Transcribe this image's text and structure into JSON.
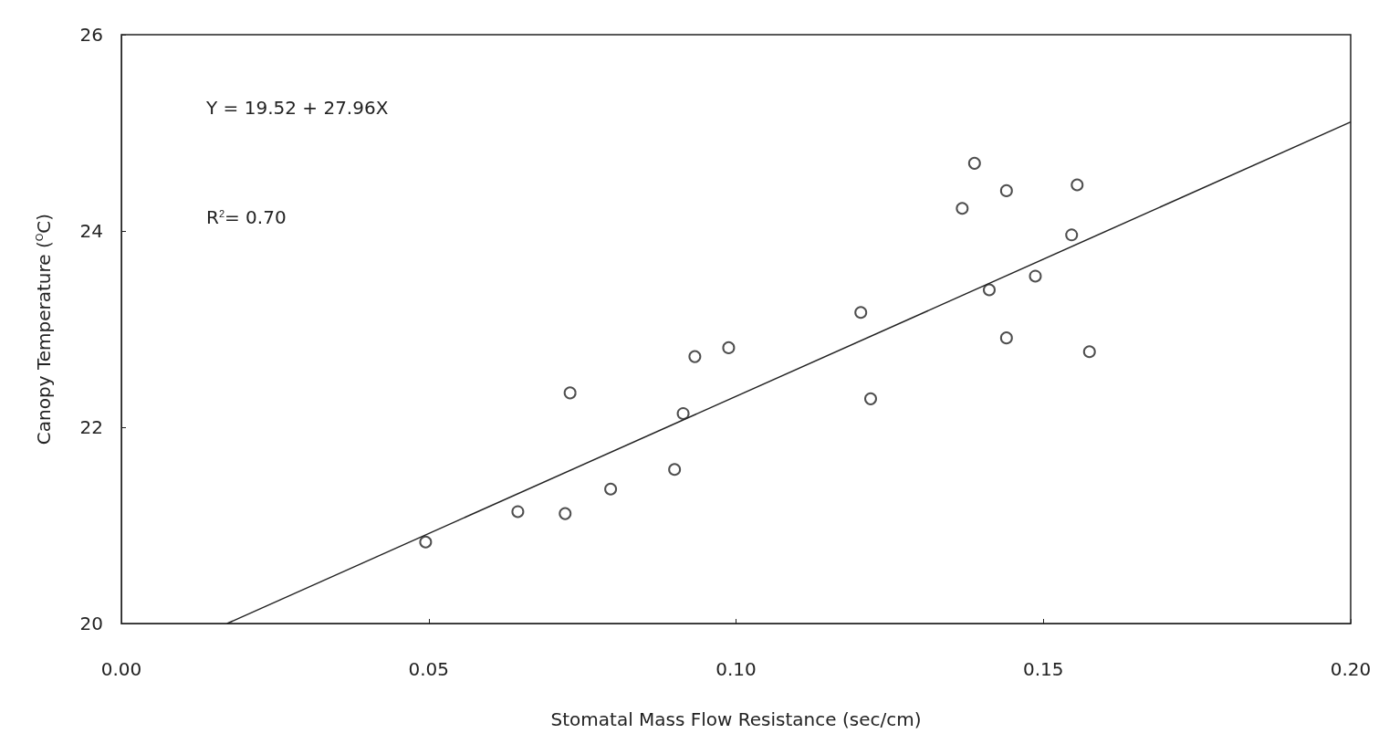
{
  "chart_data": {
    "type": "scatter",
    "xlabel": "Stomatal Mass Flow Resistance (sec/cm)",
    "ylabel": "Canopy Temperature ($^{O}$C)",
    "xlim": [
      0,
      0.2
    ],
    "ylim": [
      20,
      26
    ],
    "xticks": [
      {
        "value": 0,
        "label": "0.00"
      },
      {
        "value": 0.05,
        "label": "0.05"
      },
      {
        "value": 0.1,
        "label": "0.10"
      },
      {
        "value": 0.15,
        "label": "0.15"
      },
      {
        "value": 0.2,
        "label": "0.20"
      }
    ],
    "yticks": [
      20,
      22,
      24,
      26
    ],
    "grid": false,
    "annotations": [
      "Y = 19.52 + 27.96X",
      "R$^{2}$= 0.70"
    ],
    "series": [
      {
        "marker": "circle",
        "color": "#222222",
        "x": [
          0.0495,
          0.0645,
          0.0722,
          0.073,
          0.0796,
          0.09,
          0.0914,
          0.0933,
          0.0988,
          0.1203,
          0.1219,
          0.1368,
          0.1388,
          0.1412,
          0.144,
          0.144,
          0.1487,
          0.1546,
          0.1555,
          0.1575
        ],
        "values": [
          20.83,
          21.14,
          21.12,
          22.35,
          21.37,
          21.57,
          22.14,
          22.72,
          22.81,
          23.17,
          22.29,
          24.23,
          24.69,
          23.4,
          24.41,
          22.91,
          23.54,
          23.96,
          24.47,
          22.77
        ]
      },
      {
        "type": "line",
        "marker": "none",
        "color": "#222222",
        "line_style": "solid",
        "x": [
          0.0172,
          0.2
        ],
        "values": [
          20,
          25.11
        ]
      }
    ]
  }
}
